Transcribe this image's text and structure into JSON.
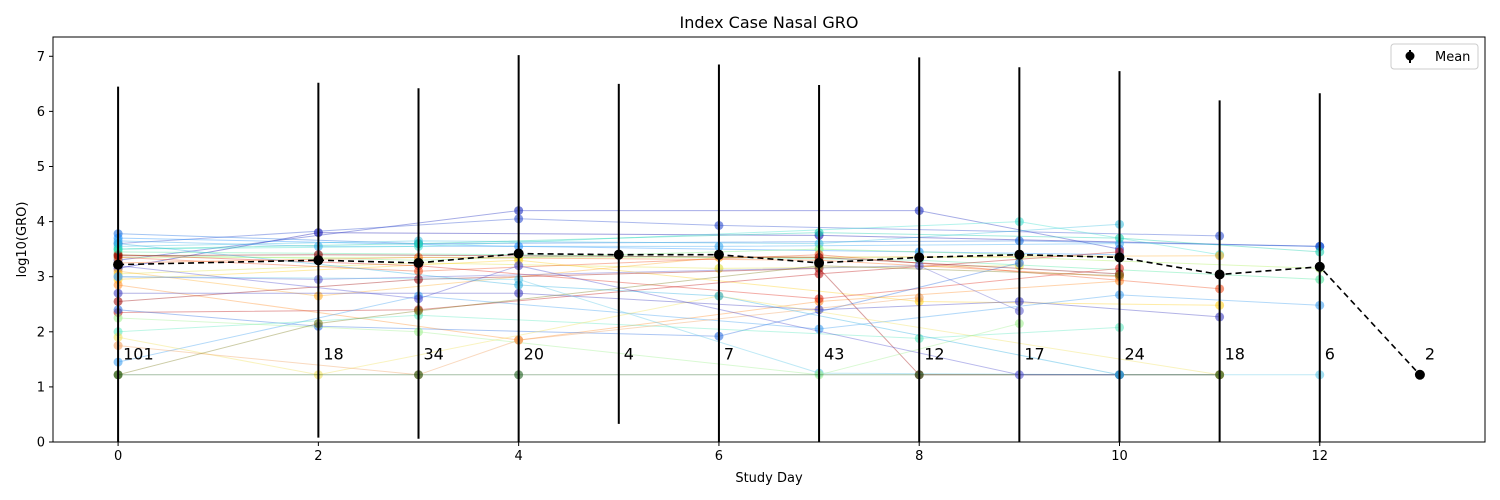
{
  "chart_data": {
    "type": "line",
    "title": "Index Case Nasal GRO",
    "xlabel": "Study Day",
    "ylabel": "log10(GRO)",
    "xlim": [
      -0.65,
      13.65
    ],
    "ylim": [
      0,
      7.35
    ],
    "xticks": [
      0,
      2,
      4,
      6,
      8,
      10,
      12
    ],
    "yticks": [
      0,
      1,
      2,
      3,
      4,
      5,
      6,
      7
    ],
    "grid": false,
    "legend": {
      "position": "top-right",
      "entries": [
        "Mean"
      ]
    },
    "mean_series": {
      "name": "Mean",
      "color": "#000000",
      "points": [
        {
          "x": 0,
          "y": 3.22,
          "lo": 0.0,
          "hi": 6.45,
          "n": "101"
        },
        {
          "x": 2,
          "y": 3.3,
          "lo": 0.08,
          "hi": 6.52,
          "n": "18"
        },
        {
          "x": 3,
          "y": 3.25,
          "lo": 0.06,
          "hi": 6.42,
          "n": "34"
        },
        {
          "x": 4,
          "y": 3.42,
          "lo": 0.0,
          "hi": 7.02,
          "n": "20"
        },
        {
          "x": 5,
          "y": 3.4,
          "lo": 0.33,
          "hi": 6.5,
          "n": "4"
        },
        {
          "x": 6,
          "y": 3.4,
          "lo": 0.0,
          "hi": 6.85,
          "n": "7"
        },
        {
          "x": 7,
          "y": 3.25,
          "lo": 0.0,
          "hi": 6.48,
          "n": "43"
        },
        {
          "x": 8,
          "y": 3.35,
          "lo": 0.0,
          "hi": 6.98,
          "n": "12"
        },
        {
          "x": 9,
          "y": 3.4,
          "lo": 0.0,
          "hi": 6.8,
          "n": "17"
        },
        {
          "x": 10,
          "y": 3.35,
          "lo": 0.0,
          "hi": 6.73,
          "n": "24"
        },
        {
          "x": 11,
          "y": 3.04,
          "lo": 0.0,
          "hi": 6.2,
          "n": "18"
        },
        {
          "x": 12,
          "y": 3.18,
          "lo": 0.0,
          "hi": 6.33,
          "n": "6"
        },
        {
          "x": 13,
          "y": 1.22,
          "lo": null,
          "hi": null,
          "n": "2"
        }
      ]
    },
    "subject_series": [
      {
        "color": "#1010b0",
        "points": [
          [
            0,
            3.15
          ],
          [
            2,
            3.8
          ],
          [
            7,
            3.75
          ],
          [
            12,
            3.55
          ]
        ]
      },
      {
        "color": "#2030c0",
        "points": [
          [
            0,
            3.3
          ],
          [
            4,
            4.2
          ],
          [
            8,
            4.2
          ],
          [
            10,
            3.5
          ]
        ]
      },
      {
        "color": "#3050d0",
        "points": [
          [
            0,
            3.6
          ],
          [
            4,
            4.05
          ],
          [
            6,
            3.93
          ],
          [
            11,
            3.74
          ]
        ]
      },
      {
        "color": "#1a6ee0",
        "points": [
          [
            0,
            3.78
          ],
          [
            3,
            3.6
          ],
          [
            9,
            3.65
          ],
          [
            12,
            3.55
          ]
        ]
      },
      {
        "color": "#1e90ff",
        "points": [
          [
            0,
            3.7
          ],
          [
            4,
            3.55
          ],
          [
            8,
            3.45
          ],
          [
            10,
            3.4
          ]
        ]
      },
      {
        "color": "#3aa8f0",
        "points": [
          [
            0,
            3.65
          ],
          [
            2,
            3.55
          ],
          [
            6,
            3.55
          ],
          [
            10,
            3.6
          ]
        ]
      },
      {
        "color": "#40c0e0",
        "points": [
          [
            0,
            3.55
          ],
          [
            3,
            3.65
          ],
          [
            7,
            3.6
          ],
          [
            10,
            3.95
          ]
        ]
      },
      {
        "color": "#40e0d0",
        "points": [
          [
            0,
            3.5
          ],
          [
            3,
            3.55
          ],
          [
            9,
            4.0
          ],
          [
            11,
            3.4
          ]
        ]
      },
      {
        "color": "#50e8a0",
        "points": [
          [
            0,
            3.45
          ],
          [
            4,
            3.4
          ],
          [
            8,
            3.3
          ],
          [
            12,
            2.95
          ]
        ]
      },
      {
        "color": "#80f080",
        "points": [
          [
            0,
            3.4
          ],
          [
            3,
            3.3
          ],
          [
            7,
            3.5
          ],
          [
            10,
            3.35
          ]
        ]
      },
      {
        "color": "#b0f060",
        "points": [
          [
            0,
            3.35
          ],
          [
            4,
            3.35
          ],
          [
            9,
            3.35
          ],
          [
            12,
            3.15
          ]
        ]
      },
      {
        "color": "#e0e040",
        "points": [
          [
            0,
            3.05
          ],
          [
            3,
            3.25
          ],
          [
            6,
            3.15
          ],
          [
            9,
            3.2
          ]
        ]
      },
      {
        "color": "#ffd020",
        "points": [
          [
            0,
            2.95
          ],
          [
            4,
            3.3
          ],
          [
            8,
            2.55
          ],
          [
            11,
            2.48
          ]
        ]
      },
      {
        "color": "#ffb030",
        "points": [
          [
            0,
            3.1
          ],
          [
            2,
            2.65
          ],
          [
            6,
            3.35
          ],
          [
            11,
            3.38
          ]
        ]
      },
      {
        "color": "#ff9030",
        "points": [
          [
            0,
            2.85
          ],
          [
            4,
            1.85
          ],
          [
            7,
            2.55
          ],
          [
            10,
            2.92
          ]
        ]
      },
      {
        "color": "#ff7020",
        "points": [
          [
            0,
            3.25
          ],
          [
            3,
            3.35
          ],
          [
            7,
            3.3
          ],
          [
            10,
            3.0
          ]
        ]
      },
      {
        "color": "#f05020",
        "points": [
          [
            0,
            3.35
          ],
          [
            3,
            3.1
          ],
          [
            7,
            3.4
          ],
          [
            11,
            2.78
          ]
        ]
      },
      {
        "color": "#e03020",
        "points": [
          [
            0,
            3.4
          ],
          [
            3,
            3.2
          ],
          [
            7,
            2.6
          ],
          [
            10,
            3.15
          ]
        ]
      },
      {
        "color": "#c01818",
        "points": [
          [
            0,
            2.35
          ],
          [
            3,
            2.4
          ],
          [
            7,
            3.05
          ],
          [
            10,
            3.45
          ]
        ]
      },
      {
        "color": "#a01010",
        "points": [
          [
            0,
            2.55
          ],
          [
            3,
            2.95
          ],
          [
            7,
            3.15
          ],
          [
            8,
            1.22
          ],
          [
            11,
            1.22
          ]
        ]
      },
      {
        "color": "#800000",
        "points": [
          [
            0,
            3.38
          ],
          [
            2,
            3.4
          ],
          [
            7,
            3.35
          ],
          [
            10,
            3.05
          ]
        ]
      },
      {
        "color": "#4040c0",
        "points": [
          [
            0,
            2.7
          ],
          [
            4,
            2.7
          ],
          [
            7,
            2.4
          ],
          [
            9,
            2.55
          ],
          [
            11,
            2.27
          ]
        ]
      },
      {
        "color": "#6060d0",
        "points": [
          [
            0,
            3.0
          ],
          [
            2,
            2.95
          ],
          [
            8,
            3.2
          ],
          [
            9,
            2.38
          ]
        ]
      },
      {
        "color": "#3070e0",
        "points": [
          [
            0,
            2.4
          ],
          [
            2,
            2.1
          ],
          [
            6,
            1.92
          ],
          [
            9,
            3.25
          ]
        ]
      },
      {
        "color": "#40a0f0",
        "points": [
          [
            0,
            1.45
          ],
          [
            3,
            2.65
          ],
          [
            7,
            2.05
          ],
          [
            10,
            2.67
          ],
          [
            12,
            2.48
          ]
        ]
      },
      {
        "color": "#60c8e8",
        "points": [
          [
            0,
            3.0
          ],
          [
            4,
            2.95
          ],
          [
            7,
            1.25
          ],
          [
            10,
            1.22
          ],
          [
            12,
            1.22
          ]
        ]
      },
      {
        "color": "#60e8c0",
        "points": [
          [
            0,
            2.0
          ],
          [
            3,
            2.3
          ],
          [
            8,
            1.88
          ],
          [
            10,
            2.08
          ]
        ]
      },
      {
        "color": "#a0f090",
        "points": [
          [
            0,
            2.25
          ],
          [
            3,
            2.0
          ],
          [
            7,
            1.22
          ],
          [
            9,
            2.15
          ]
        ]
      },
      {
        "color": "#f0e060",
        "points": [
          [
            0,
            1.9
          ],
          [
            2,
            1.22
          ],
          [
            6,
            2.65
          ],
          [
            11,
            1.22
          ]
        ]
      },
      {
        "color": "#f0a060",
        "points": [
          [
            0,
            1.75
          ],
          [
            3,
            1.22
          ],
          [
            4,
            1.85
          ],
          [
            8,
            2.62
          ]
        ]
      },
      {
        "color": "#808020",
        "points": [
          [
            0,
            1.22
          ],
          [
            2,
            2.15
          ],
          [
            3,
            2.38
          ],
          [
            7,
            3.2
          ],
          [
            10,
            3.02
          ]
        ]
      },
      {
        "color": "#206020",
        "points": [
          [
            0,
            1.22
          ],
          [
            3,
            1.22
          ],
          [
            4,
            1.22
          ],
          [
            8,
            1.22
          ],
          [
            10,
            1.22
          ],
          [
            11,
            1.22
          ]
        ]
      },
      {
        "color": "#5050d0",
        "points": [
          [
            0,
            3.2
          ],
          [
            3,
            2.6
          ],
          [
            4,
            3.2
          ],
          [
            9,
            1.22
          ],
          [
            10,
            1.22
          ]
        ]
      },
      {
        "color": "#30b0e0",
        "points": [
          [
            0,
            3.6
          ],
          [
            4,
            2.85
          ],
          [
            6,
            2.65
          ],
          [
            10,
            1.22
          ]
        ]
      },
      {
        "color": "#20d0b0",
        "points": [
          [
            0,
            3.5
          ],
          [
            3,
            3.6
          ],
          [
            7,
            3.8
          ],
          [
            10,
            3.7
          ],
          [
            12,
            3.45
          ]
        ]
      }
    ]
  }
}
